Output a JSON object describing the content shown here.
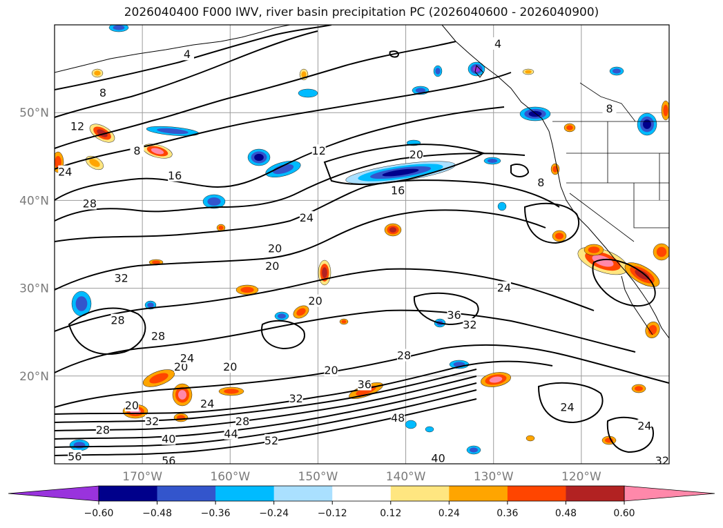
{
  "title": "2026040400 F000 IWV, river basin precipitation PC (2026040600 - 2026040900)",
  "map": {
    "lon_range": [
      -180,
      -110
    ],
    "lat_range": [
      10,
      60
    ],
    "lon_ticks": [
      -170,
      -160,
      -150,
      -140,
      -130,
      -120
    ],
    "lon_tick_labels": [
      "170°W",
      "160°W",
      "150°W",
      "140°W",
      "130°W",
      "120°W"
    ],
    "lat_ticks": [
      20,
      30,
      40,
      50
    ],
    "lat_tick_labels": [
      "20°N",
      "30°N",
      "40°N",
      "50°N"
    ],
    "grid": true
  },
  "iwv_contours": {
    "labels": [
      {
        "text": "4",
        "lon": -164.9,
        "lat": 56.6
      },
      {
        "text": "4",
        "lon": -129.5,
        "lat": 57.8
      },
      {
        "text": "8",
        "lon": -174.5,
        "lat": 52.2
      },
      {
        "text": "8",
        "lon": -170.6,
        "lat": 45.6
      },
      {
        "text": "8",
        "lon": -116.8,
        "lat": 50.4
      },
      {
        "text": "8",
        "lon": -124.6,
        "lat": 42.0
      },
      {
        "text": "12",
        "lon": -177.4,
        "lat": 48.4
      },
      {
        "text": "12",
        "lon": -149.9,
        "lat": 45.6
      },
      {
        "text": "16",
        "lon": -166.3,
        "lat": 42.8
      },
      {
        "text": "16",
        "lon": -140.9,
        "lat": 41.1
      },
      {
        "text": "20",
        "lon": -138.8,
        "lat": 45.2
      },
      {
        "text": "20",
        "lon": -154.9,
        "lat": 34.5
      },
      {
        "text": "20",
        "lon": -155.2,
        "lat": 32.5
      },
      {
        "text": "20",
        "lon": -150.3,
        "lat": 28.5
      },
      {
        "text": "20",
        "lon": -165.6,
        "lat": 21.0
      },
      {
        "text": "20",
        "lon": -160.0,
        "lat": 21.0
      },
      {
        "text": "20",
        "lon": -171.2,
        "lat": 16.6
      },
      {
        "text": "20",
        "lon": -148.5,
        "lat": 20.6
      },
      {
        "text": "24",
        "lon": -178.8,
        "lat": 43.2
      },
      {
        "text": "24",
        "lon": -151.3,
        "lat": 38.0
      },
      {
        "text": "24",
        "lon": -128.8,
        "lat": 30.0
      },
      {
        "text": "24",
        "lon": -164.9,
        "lat": 22.0
      },
      {
        "text": "24",
        "lon": -162.6,
        "lat": 16.8
      },
      {
        "text": "24",
        "lon": -121.6,
        "lat": 16.4
      },
      {
        "text": "24",
        "lon": -112.8,
        "lat": 14.3
      },
      {
        "text": "28",
        "lon": -176.0,
        "lat": 39.6
      },
      {
        "text": "28",
        "lon": -172.8,
        "lat": 26.3
      },
      {
        "text": "28",
        "lon": -168.2,
        "lat": 24.5
      },
      {
        "text": "28",
        "lon": -140.2,
        "lat": 22.3
      },
      {
        "text": "28",
        "lon": -158.6,
        "lat": 14.8
      },
      {
        "text": "28",
        "lon": -174.5,
        "lat": 13.8
      },
      {
        "text": "32",
        "lon": -172.4,
        "lat": 31.1
      },
      {
        "text": "32",
        "lon": -132.7,
        "lat": 25.8
      },
      {
        "text": "32",
        "lon": -168.9,
        "lat": 14.8
      },
      {
        "text": "32",
        "lon": -152.5,
        "lat": 17.4
      },
      {
        "text": "32",
        "lon": -110.8,
        "lat": 10.3
      },
      {
        "text": "36",
        "lon": -134.5,
        "lat": 26.9
      },
      {
        "text": "36",
        "lon": -144.7,
        "lat": 19.0
      },
      {
        "text": "40",
        "lon": -167.0,
        "lat": 12.8
      },
      {
        "text": "40",
        "lon": -136.3,
        "lat": 10.6
      },
      {
        "text": "44",
        "lon": -159.9,
        "lat": 13.4
      },
      {
        "text": "48",
        "lon": -140.9,
        "lat": 15.2
      },
      {
        "text": "52",
        "lon": -155.3,
        "lat": 12.6
      },
      {
        "text": "56",
        "lon": -177.7,
        "lat": 10.8
      },
      {
        "text": "56",
        "lon": -167.0,
        "lat": 10.3
      }
    ]
  },
  "colorbar": {
    "levels": [
      "-0.60",
      "-0.48",
      "-0.36",
      "-0.24",
      "-0.12",
      "0.12",
      "0.24",
      "0.36",
      "0.48",
      "0.60"
    ],
    "colors": [
      "#9933dd",
      "#00008b",
      "#3355cc",
      "#00bbff",
      "#aae0ff",
      "#ffffff",
      "#ffe680",
      "#ffa500",
      "#ff4500",
      "#b22222",
      "#ff88aa"
    ],
    "extend": "both"
  },
  "precip_colors": {
    "neg_strong": "#00008b",
    "neg_mid": "#3355cc",
    "neg_light": "#00bbff",
    "neg_faint": "#aae0ff",
    "neg_extreme": "#9933dd",
    "pos_faint": "#ffe680",
    "pos_light": "#ffa500",
    "pos_mid": "#ff4500",
    "pos_strong": "#b22222",
    "pos_extreme": "#ff88aa"
  }
}
